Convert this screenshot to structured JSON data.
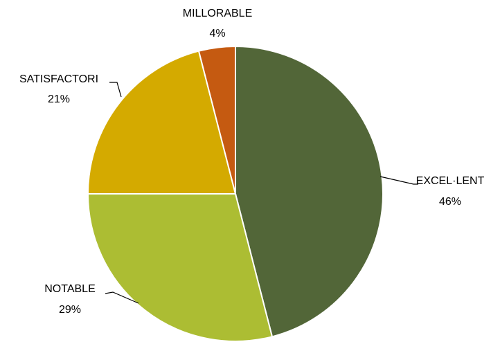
{
  "chart_data": {
    "type": "pie",
    "title": "",
    "slices": [
      {
        "label": "EXCEL·LENT",
        "value": 46,
        "display": "46%",
        "color": "#526638"
      },
      {
        "label": "NOTABLE",
        "value": 29,
        "display": "29%",
        "color": "#acbd33"
      },
      {
        "label": "SATISFACTORI",
        "value": 21,
        "display": "21%",
        "color": "#d4aa00"
      },
      {
        "label": "MILLORABLE",
        "value": 4,
        "display": "4%",
        "color": "#c55a11"
      }
    ],
    "start_angle": "12 o'clock",
    "direction": "clockwise",
    "legend": "none",
    "data_labels": "outside with leader lines"
  }
}
